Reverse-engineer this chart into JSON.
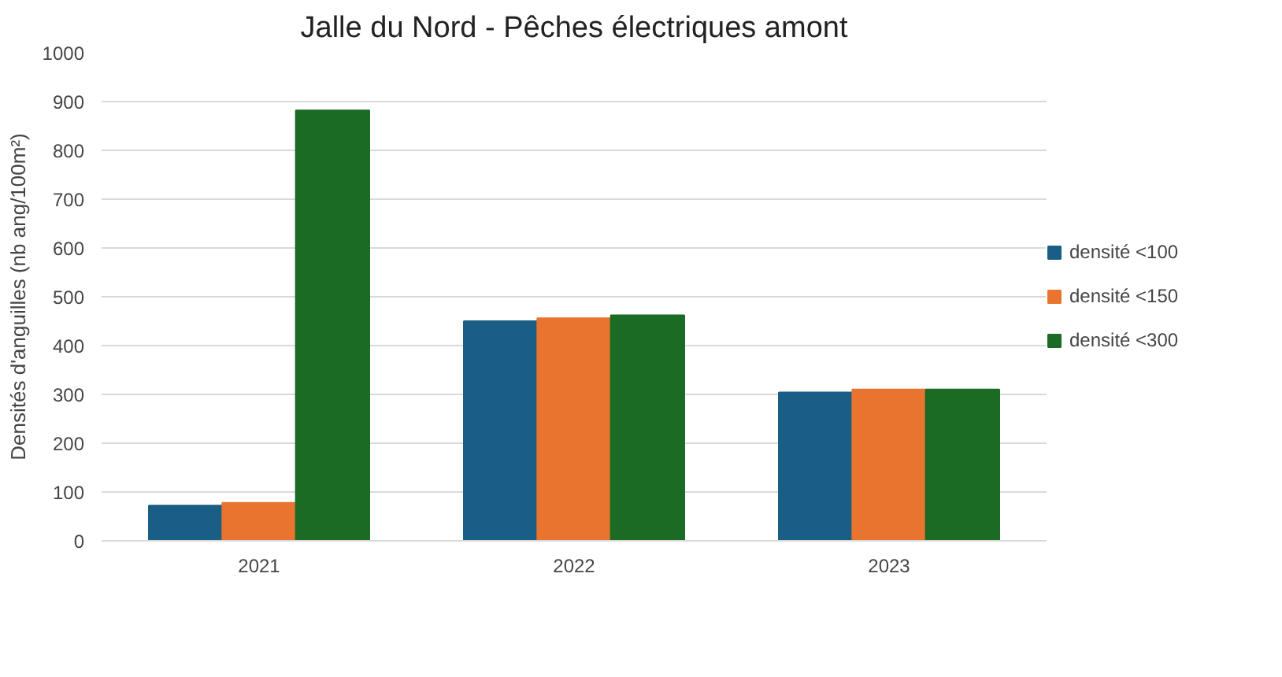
{
  "chart_data": {
    "type": "bar",
    "title": "Jalle du Nord - Pêches électriques amont",
    "ylabel": "Densités d'anguilles (nb ang/100m²)",
    "categories": [
      "2021",
      "2022",
      "2023"
    ],
    "series": [
      {
        "name": "densité <100",
        "color": "#1a5e86",
        "values": [
          72,
          450,
          304
        ]
      },
      {
        "name": "densité <150",
        "color": "#e8742f",
        "values": [
          78,
          456,
          310
        ]
      },
      {
        "name": "densité <300",
        "color": "#1b6b24",
        "values": [
          882,
          462,
          310
        ]
      }
    ],
    "ylim": [
      0,
      1000
    ],
    "yticks": [
      0,
      100,
      200,
      300,
      400,
      500,
      600,
      700,
      800,
      900,
      1000
    ],
    "grid": "y",
    "legend": "right"
  }
}
